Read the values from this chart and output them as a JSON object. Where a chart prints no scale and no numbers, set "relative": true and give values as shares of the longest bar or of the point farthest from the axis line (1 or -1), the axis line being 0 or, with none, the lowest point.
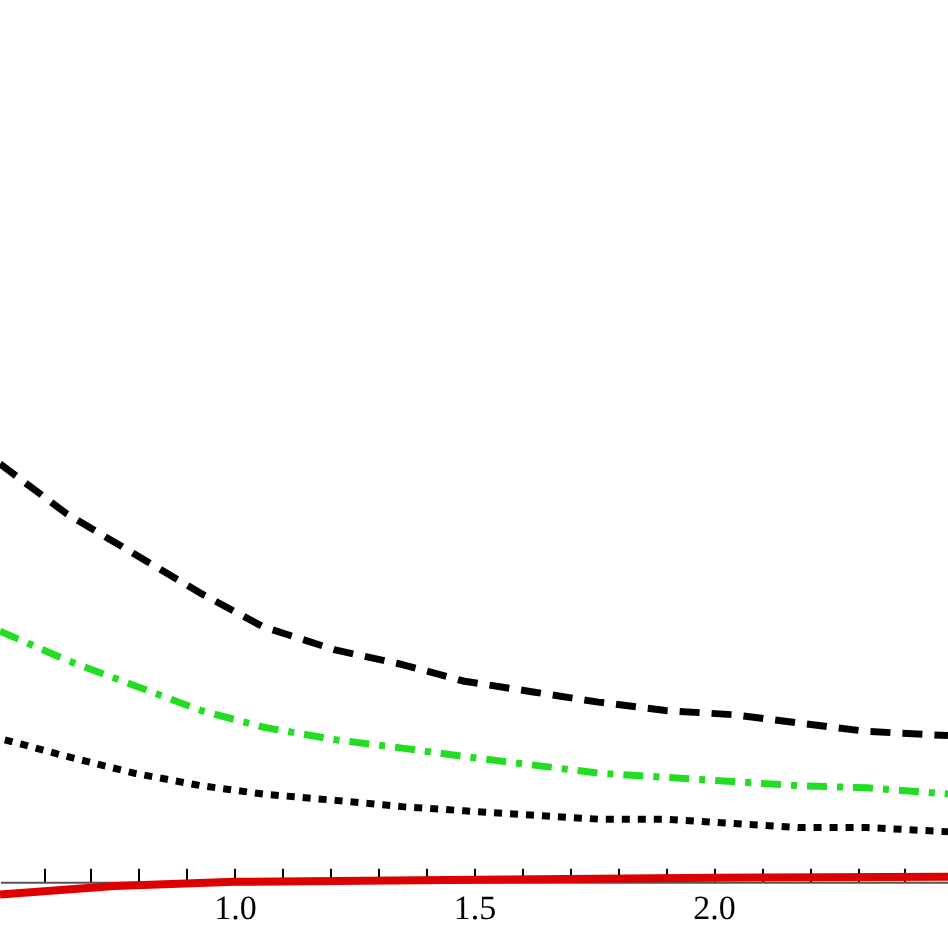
{
  "chart_data": {
    "type": "line",
    "relative": true,
    "grid": false,
    "xlim": [
      0.51,
      2.49
    ],
    "xticks": [
      {
        "value": 0.6,
        "label": null
      },
      {
        "value": 0.7,
        "label": null
      },
      {
        "value": 0.8,
        "label": null
      },
      {
        "value": 0.9,
        "label": null
      },
      {
        "value": 1,
        "label": "1.0"
      },
      {
        "value": 1.1,
        "label": null
      },
      {
        "value": 1.2,
        "label": null
      },
      {
        "value": 1.3,
        "label": null
      },
      {
        "value": 1.4,
        "label": null
      },
      {
        "value": 1.5,
        "label": "1.5"
      },
      {
        "value": 1.6,
        "label": null
      },
      {
        "value": 1.7,
        "label": null
      },
      {
        "value": 1.8,
        "label": null
      },
      {
        "value": 1.9,
        "label": null
      },
      {
        "value": 2,
        "label": "2.0"
      },
      {
        "value": 2.1,
        "label": null
      },
      {
        "value": 2.2,
        "label": null
      },
      {
        "value": 2.3,
        "label": null
      },
      {
        "value": 2.4,
        "label": null
      }
    ],
    "series": [
      {
        "color": "#000000",
        "line_style": "dashed",
        "x": [
          0.51,
          0.65,
          0.79,
          0.93,
          1.06,
          1.21,
          1.35,
          1.48,
          1.62,
          1.76,
          1.9,
          2.04,
          2.18,
          2.32,
          2.49
        ],
        "values": [
          1,
          0.88,
          0.785,
          0.69,
          0.61,
          0.555,
          0.52,
          0.48,
          0.455,
          0.43,
          0.41,
          0.4,
          0.38,
          0.36,
          0.35
        ]
      },
      {
        "color": "#22dd22",
        "line_style": "dashdot",
        "x": [
          0.51,
          0.65,
          0.79,
          0.93,
          1.06,
          1.21,
          1.35,
          1.48,
          1.62,
          1.76,
          1.9,
          2.04,
          2.18,
          2.32,
          2.49
        ],
        "values": [
          0.6,
          0.53,
          0.47,
          0.41,
          0.37,
          0.34,
          0.32,
          0.3,
          0.28,
          0.26,
          0.25,
          0.24,
          0.23,
          0.225,
          0.21
        ]
      },
      {
        "color": "#000000",
        "line_style": "dotted",
        "x": [
          0.52,
          0.65,
          0.79,
          0.93,
          1.06,
          1.21,
          1.35,
          1.48,
          1.62,
          1.76,
          1.9,
          2.04,
          2.18,
          2.32,
          2.49
        ],
        "values": [
          0.34,
          0.3,
          0.26,
          0.23,
          0.21,
          0.195,
          0.18,
          0.17,
          0.16,
          0.15,
          0.15,
          0.14,
          0.13,
          0.13,
          0.12
        ]
      },
      {
        "color": "#dd0000",
        "line_style": "solid",
        "x": [
          0.51,
          0.75,
          1,
          1.5,
          2,
          2.49
        ],
        "values": [
          -0.03,
          -0.01,
          0,
          0.005,
          0.01,
          0.012
        ]
      }
    ]
  }
}
